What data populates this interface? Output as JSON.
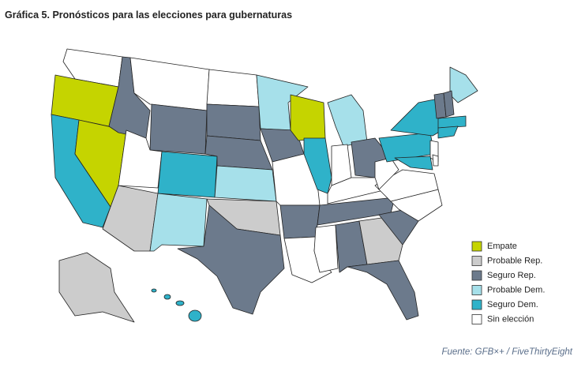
{
  "title": "Gráfica 5. Pronósticos para las elecciones para gubernaturas",
  "legend": [
    {
      "label": "Empate",
      "color": "#c5d400"
    },
    {
      "label": "Probable Rep.",
      "color": "#cccccc"
    },
    {
      "label": "Seguro Rep.",
      "color": "#6c7a8c"
    },
    {
      "label": "Probable Dem.",
      "color": "#a6e0ea"
    },
    {
      "label": "Seguro Dem.",
      "color": "#2fb2c9"
    },
    {
      "label": "Sin elección",
      "color": "#ffffff"
    }
  ],
  "source": "Fuente: GFB×+ / FiveThirtyEight"
}
